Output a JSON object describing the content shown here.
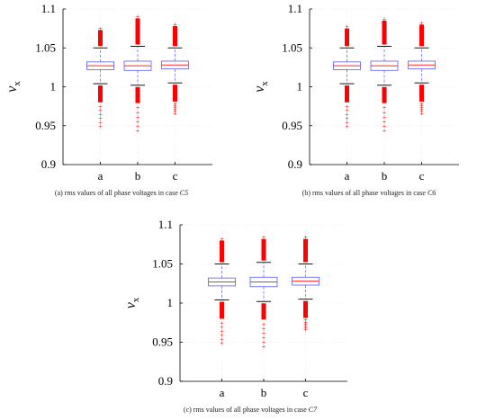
{
  "charts": [
    {
      "caption_text": "(a)  rms values of all phase voltages in case ",
      "caption_case": "C5",
      "chart_data": {
        "type": "box",
        "categories": [
          "a",
          "b",
          "c"
        ],
        "ylabel": "v",
        "ylabel_sub": "x",
        "ylim": [
          0.9,
          1.1
        ],
        "yticks": [
          0.9,
          0.95,
          1,
          1.05,
          1.1
        ],
        "ytick_labels": [
          "0.9",
          "0.95",
          "1",
          "1.05",
          "1.1"
        ],
        "grid": true,
        "boxes": [
          {
            "category": "a",
            "whisker_low": 1.004,
            "q1": 1.022,
            "median": 1.027,
            "q3": 1.032,
            "whisker_high": 1.05,
            "outlier_low_from": 0.995,
            "outlier_low_min": 0.949,
            "outlier_high_to": 1.073
          },
          {
            "category": "b",
            "whisker_low": 1.002,
            "q1": 1.021,
            "median": 1.027,
            "q3": 1.033,
            "whisker_high": 1.052,
            "outlier_low_from": 0.994,
            "outlier_low_min": 0.944,
            "outlier_high_to": 1.088
          },
          {
            "category": "c",
            "whisker_low": 1.005,
            "q1": 1.023,
            "median": 1.028,
            "q3": 1.033,
            "whisker_high": 1.05,
            "outlier_low_from": 0.996,
            "outlier_low_min": 0.966,
            "outlier_high_to": 1.078
          }
        ]
      }
    },
    {
      "caption_text": "(b) rms values of all phase voltages in case ",
      "caption_case": "C6",
      "chart_data": {
        "type": "box",
        "categories": [
          "a",
          "b",
          "c"
        ],
        "ylabel": "v",
        "ylabel_sub": "x",
        "ylim": [
          0.9,
          1.1
        ],
        "yticks": [
          0.9,
          0.95,
          1,
          1.05,
          1.1
        ],
        "ytick_labels": [
          "0.9",
          "0.95",
          "1",
          "1.05",
          "1.1"
        ],
        "grid": true,
        "boxes": [
          {
            "category": "a",
            "whisker_low": 1.004,
            "q1": 1.022,
            "median": 1.027,
            "q3": 1.032,
            "whisker_high": 1.05,
            "outlier_low_from": 0.995,
            "outlier_low_min": 0.949,
            "outlier_high_to": 1.075
          },
          {
            "category": "b",
            "whisker_low": 1.002,
            "q1": 1.021,
            "median": 1.027,
            "q3": 1.033,
            "whisker_high": 1.052,
            "outlier_low_from": 0.994,
            "outlier_low_min": 0.944,
            "outlier_high_to": 1.085
          },
          {
            "category": "c",
            "whisker_low": 1.005,
            "q1": 1.023,
            "median": 1.028,
            "q3": 1.033,
            "whisker_high": 1.05,
            "outlier_low_from": 0.996,
            "outlier_low_min": 0.966,
            "outlier_high_to": 1.08
          }
        ]
      }
    },
    {
      "caption_text": "(c)  rms values of all phase voltages in case ",
      "caption_case": "C7",
      "chart_data": {
        "type": "box",
        "categories": [
          "a",
          "b",
          "c"
        ],
        "ylabel": "v",
        "ylabel_sub": "x",
        "ylim": [
          0.9,
          1.1
        ],
        "yticks": [
          0.9,
          0.95,
          1,
          1.05,
          1.1
        ],
        "ytick_labels": [
          "0.9",
          "0.95",
          "1",
          "1.05",
          "1.1"
        ],
        "grid": true,
        "boxes": [
          {
            "category": "a",
            "whisker_low": 1.004,
            "q1": 1.022,
            "median": 1.027,
            "q3": 1.032,
            "whisker_high": 1.05,
            "outlier_low_from": 0.995,
            "outlier_low_min": 0.949,
            "outlier_high_to": 1.08
          },
          {
            "category": "b",
            "whisker_low": 1.002,
            "q1": 1.021,
            "median": 1.027,
            "q3": 1.033,
            "whisker_high": 1.052,
            "outlier_low_from": 0.994,
            "outlier_low_min": 0.944,
            "outlier_high_to": 1.082
          },
          {
            "category": "c",
            "whisker_low": 1.005,
            "q1": 1.023,
            "median": 1.028,
            "q3": 1.033,
            "whisker_high": 1.05,
            "outlier_low_from": 0.996,
            "outlier_low_min": 0.966,
            "outlier_high_to": 1.082
          }
        ]
      }
    }
  ],
  "colors": {
    "box": "#6b6bff",
    "whisker": "#6b6bff",
    "median": "#ff2a2a",
    "outlier": "#ff0000",
    "axis": "#000000",
    "grid": "#e4e4e4"
  }
}
